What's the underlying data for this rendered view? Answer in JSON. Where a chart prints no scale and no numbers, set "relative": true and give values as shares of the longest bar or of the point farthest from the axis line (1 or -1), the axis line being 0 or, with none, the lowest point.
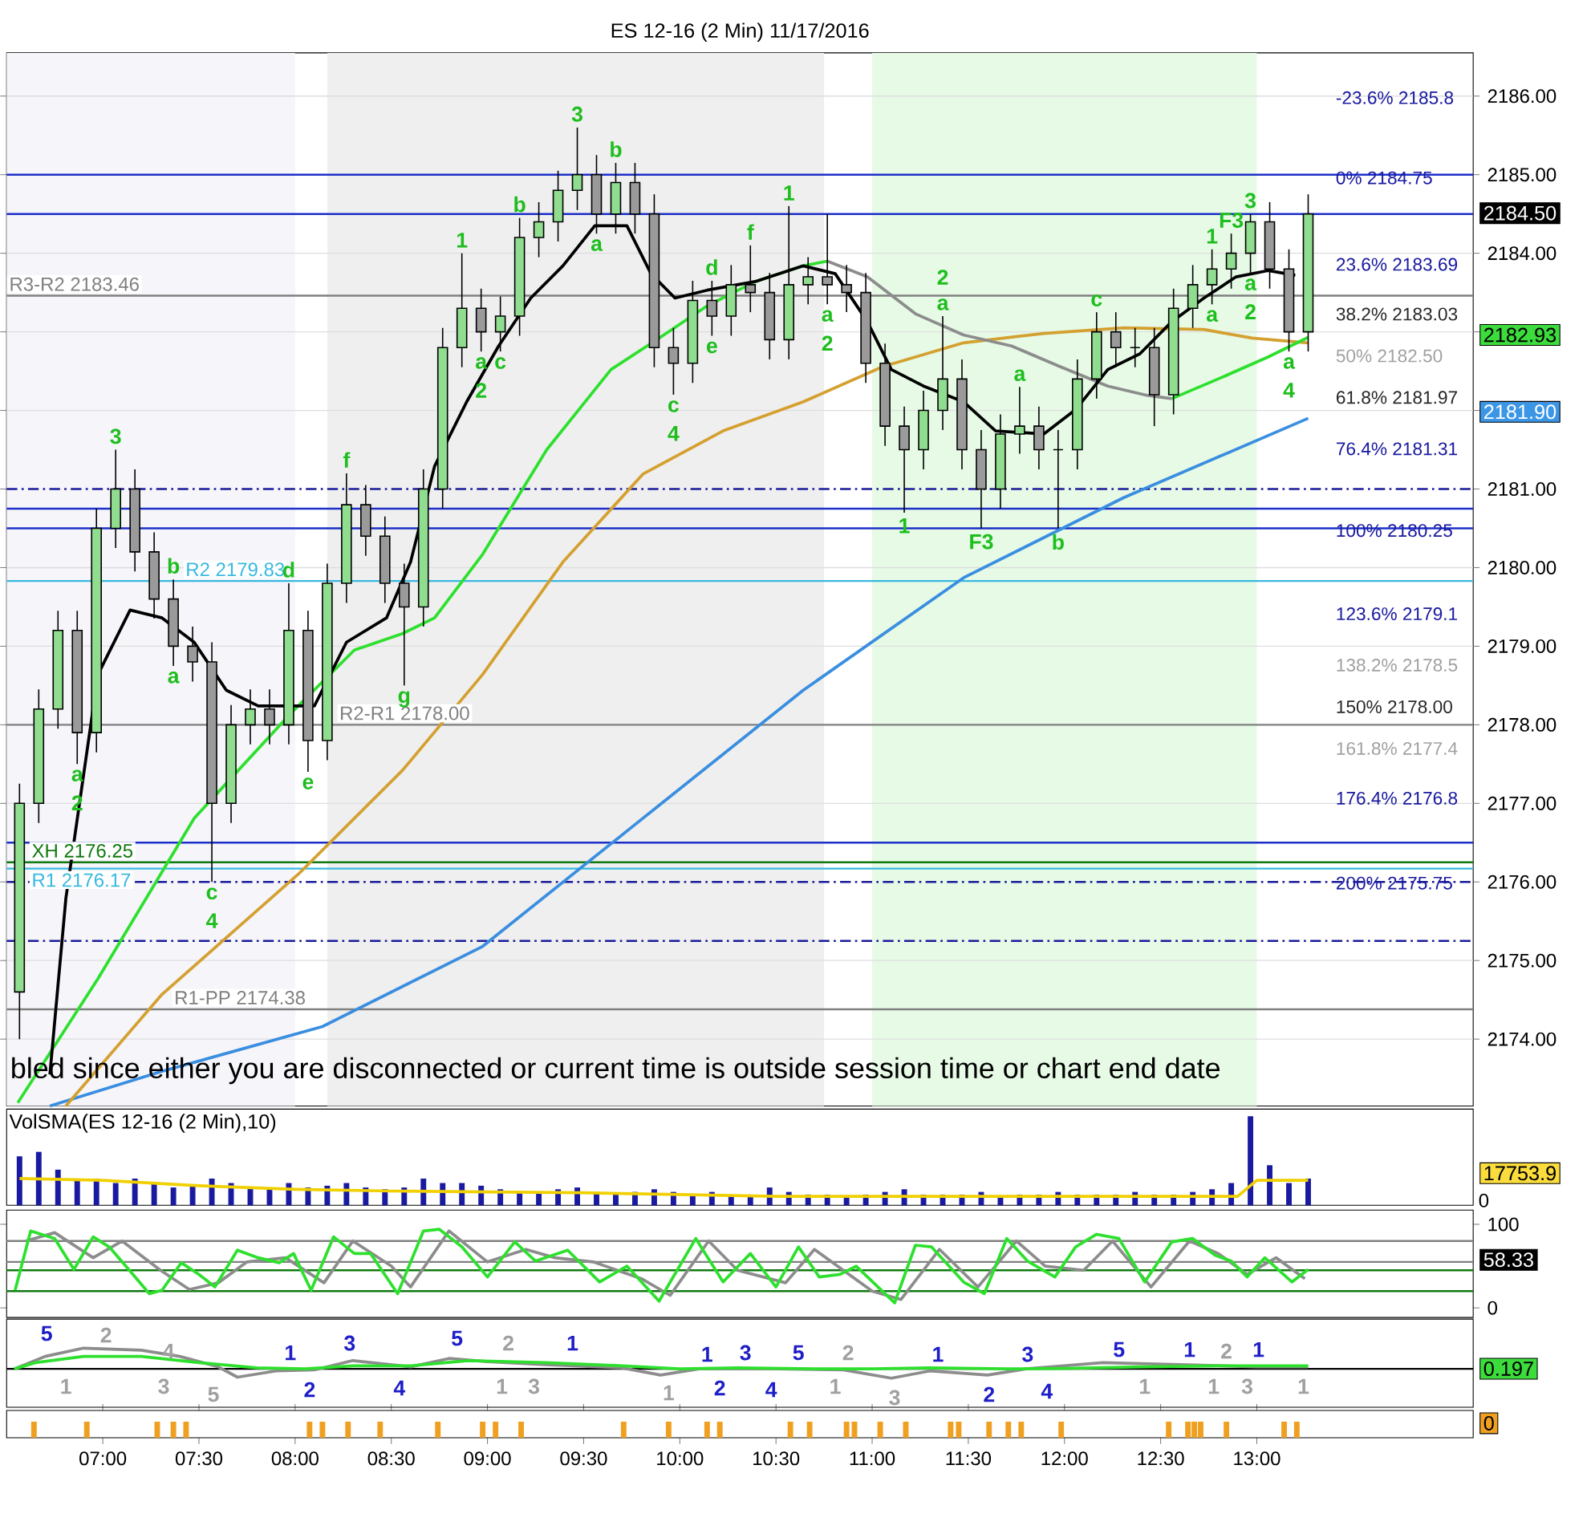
{
  "chart_data": [
    {
      "type": "candlestick",
      "title": "ES 12-16 (2 Min) 11/17/2016",
      "xlim": [
        6.5,
        14.125
      ],
      "ylim": [
        2173.15,
        2186.55
      ],
      "tick_labels": "y",
      "grid": "y",
      "yticks": [
        {
          "value": 2174,
          "label": "2174.00"
        },
        {
          "value": 2175,
          "label": "2175.00"
        },
        {
          "value": 2176,
          "label": "2176.00"
        },
        {
          "value": 2177,
          "label": "2177.00"
        },
        {
          "value": 2178,
          "label": "2178.00"
        },
        {
          "value": 2179,
          "label": "2179.00"
        },
        {
          "value": 2180,
          "label": "2180.00"
        },
        {
          "value": 2181,
          "label": "2181.00"
        },
        {
          "value": 2182,
          "label": null
        },
        {
          "value": 2183,
          "label": null
        },
        {
          "value": 2184,
          "label": "2184.00"
        },
        {
          "value": 2185,
          "label": "2185.00"
        },
        {
          "value": 2186,
          "label": "2186.00"
        }
      ],
      "bands": [
        {
          "axis": "x",
          "from": 6.5,
          "to": 8.0,
          "color": "#f5f5fa"
        },
        {
          "axis": "x",
          "from": 8.167,
          "to": 10.75,
          "color": "#efefef"
        },
        {
          "axis": "x",
          "from": 11.0,
          "to": 13.0,
          "color": "#e6fae6"
        }
      ],
      "x": [
        6.567,
        6.667,
        6.767,
        6.867,
        6.967,
        7.067,
        7.167,
        7.267,
        7.367,
        7.467,
        7.567,
        7.667,
        7.767,
        7.867,
        7.967,
        8.067,
        8.167,
        8.267,
        8.367,
        8.467,
        8.567,
        8.667,
        8.767,
        8.867,
        8.967,
        9.067,
        9.167,
        9.267,
        9.367,
        9.467,
        9.567,
        9.667,
        9.767,
        9.867,
        9.967,
        10.067,
        10.167,
        10.267,
        10.367,
        10.467,
        10.567,
        10.667,
        10.767,
        10.867,
        10.967,
        11.067,
        11.167,
        11.267,
        11.367,
        11.467,
        11.567,
        11.667,
        11.767,
        11.867,
        11.967,
        12.067,
        12.167,
        12.267,
        12.367,
        12.467,
        12.567,
        12.667,
        12.767,
        12.867,
        12.967,
        13.067,
        13.167,
        13.267
      ],
      "ohlc": [
        [
          2174.6,
          2177.25,
          2174.0,
          2177.0
        ],
        [
          2177.0,
          2178.45,
          2176.75,
          2178.2
        ],
        [
          2178.2,
          2179.45,
          2177.95,
          2179.2
        ],
        [
          2179.2,
          2179.45,
          2177.5,
          2177.9
        ],
        [
          2177.9,
          2180.75,
          2177.65,
          2180.5
        ],
        [
          2180.5,
          2181.5,
          2180.25,
          2181.0
        ],
        [
          2181.0,
          2181.25,
          2179.95,
          2180.2
        ],
        [
          2180.2,
          2180.45,
          2179.35,
          2179.6
        ],
        [
          2179.6,
          2179.85,
          2178.75,
          2179.0
        ],
        [
          2179.0,
          2179.25,
          2178.55,
          2178.8
        ],
        [
          2178.8,
          2179.05,
          2176.0,
          2177.0
        ],
        [
          2177.0,
          2178.25,
          2176.75,
          2178.0
        ],
        [
          2178.0,
          2178.45,
          2177.75,
          2178.2
        ],
        [
          2178.2,
          2178.45,
          2177.75,
          2178.0
        ],
        [
          2178.0,
          2179.8,
          2177.75,
          2179.2
        ],
        [
          2179.2,
          2179.45,
          2177.4,
          2177.8
        ],
        [
          2177.8,
          2180.05,
          2177.55,
          2179.8
        ],
        [
          2179.8,
          2181.2,
          2179.55,
          2180.8
        ],
        [
          2180.8,
          2181.05,
          2180.15,
          2180.4
        ],
        [
          2180.4,
          2180.65,
          2179.55,
          2179.8
        ],
        [
          2179.8,
          2180.05,
          2178.5,
          2179.5
        ],
        [
          2179.5,
          2181.25,
          2179.25,
          2181.0
        ],
        [
          2181.0,
          2183.05,
          2180.75,
          2182.8
        ],
        [
          2182.8,
          2184.0,
          2182.55,
          2183.3
        ],
        [
          2183.3,
          2183.55,
          2182.75,
          2183.0
        ],
        [
          2183.0,
          2183.45,
          2182.75,
          2183.2
        ],
        [
          2183.2,
          2184.45,
          2182.95,
          2184.2
        ],
        [
          2184.2,
          2184.65,
          2183.95,
          2184.4
        ],
        [
          2184.4,
          2185.05,
          2184.15,
          2184.8
        ],
        [
          2184.8,
          2185.6,
          2184.55,
          2185.0
        ],
        [
          2185.0,
          2185.25,
          2184.25,
          2184.5
        ],
        [
          2184.5,
          2185.15,
          2184.25,
          2184.9
        ],
        [
          2184.9,
          2185.15,
          2184.25,
          2184.5
        ],
        [
          2184.5,
          2184.75,
          2182.55,
          2182.8
        ],
        [
          2182.8,
          2183.05,
          2182.2,
          2182.6
        ],
        [
          2182.6,
          2183.65,
          2182.35,
          2183.4
        ],
        [
          2183.4,
          2183.65,
          2182.95,
          2183.2
        ],
        [
          2183.2,
          2183.85,
          2182.95,
          2183.6
        ],
        [
          2183.6,
          2184.1,
          2183.25,
          2183.5
        ],
        [
          2183.5,
          2183.75,
          2182.65,
          2182.9
        ],
        [
          2182.9,
          2184.6,
          2182.65,
          2183.6
        ],
        [
          2183.6,
          2183.95,
          2183.35,
          2183.7
        ],
        [
          2183.7,
          2184.5,
          2183.35,
          2183.6
        ],
        [
          2183.6,
          2183.85,
          2183.25,
          2183.5
        ],
        [
          2183.5,
          2183.75,
          2182.35,
          2182.6
        ],
        [
          2182.6,
          2182.85,
          2181.55,
          2181.8
        ],
        [
          2181.8,
          2182.05,
          2180.7,
          2181.5
        ],
        [
          2181.5,
          2182.25,
          2181.25,
          2182.0
        ],
        [
          2182.0,
          2183.2,
          2181.75,
          2182.4
        ],
        [
          2182.4,
          2182.65,
          2181.25,
          2181.5
        ],
        [
          2181.5,
          2181.75,
          2180.5,
          2181.0
        ],
        [
          2181.0,
          2181.95,
          2180.75,
          2181.7
        ],
        [
          2181.7,
          2182.3,
          2181.45,
          2181.8
        ],
        [
          2181.8,
          2182.05,
          2181.25,
          2181.5
        ],
        [
          2181.5,
          2181.75,
          2180.5,
          2181.5
        ],
        [
          2181.5,
          2182.65,
          2181.25,
          2182.4
        ],
        [
          2182.4,
          2183.25,
          2182.15,
          2183.0
        ],
        [
          2183.0,
          2183.25,
          2182.55,
          2182.8
        ],
        [
          2182.8,
          2183.05,
          2182.55,
          2182.8
        ],
        [
          2182.8,
          2183.05,
          2181.8,
          2182.2
        ],
        [
          2182.2,
          2183.55,
          2181.95,
          2183.3
        ],
        [
          2183.3,
          2183.85,
          2183.05,
          2183.6
        ],
        [
          2183.6,
          2184.05,
          2183.35,
          2183.8
        ],
        [
          2183.8,
          2184.25,
          2183.55,
          2184.0
        ],
        [
          2184.0,
          2184.5,
          2183.75,
          2184.4
        ],
        [
          2184.4,
          2184.65,
          2183.55,
          2183.8
        ],
        [
          2183.8,
          2184.05,
          2182.75,
          2183.0
        ],
        [
          2183.0,
          2184.75,
          2182.75,
          2184.5
        ]
      ],
      "colors": [
        "#90dd90",
        "#90dd90",
        "#90dd90",
        "#9a9a9a",
        "#90dd90",
        "#90dd90",
        "#9a9a9a",
        "#9a9a9a",
        "#9a9a9a",
        "#9a9a9a",
        "#9a9a9a",
        "#90dd90",
        "#90dd90",
        "#9a9a9a",
        "#90dd90",
        "#9a9a9a",
        "#90dd90",
        "#90dd90",
        "#9a9a9a",
        "#9a9a9a",
        "#9a9a9a",
        "#90dd90",
        "#90dd90",
        "#90dd90",
        "#9a9a9a",
        "#90dd90",
        "#90dd90",
        "#90dd90",
        "#90dd90",
        "#90dd90",
        "#9a9a9a",
        "#90dd90",
        "#9a9a9a",
        "#9a9a9a",
        "#9a9a9a",
        "#90dd90",
        "#9a9a9a",
        "#90dd90",
        "#9a9a9a",
        "#9a9a9a",
        "#90dd90",
        "#90dd90",
        "#9a9a9a",
        "#9a9a9a",
        "#9a9a9a",
        "#9a9a9a",
        "#9a9a9a",
        "#90dd90",
        "#90dd90",
        "#9a9a9a",
        "#9a9a9a",
        "#90dd90",
        "#90dd90",
        "#9a9a9a",
        "#000000",
        "#90dd90",
        "#90dd90",
        "#9a9a9a",
        "#000000",
        "#9a9a9a",
        "#90dd90",
        "#90dd90",
        "#90dd90",
        "#90dd90",
        "#90dd90",
        "#9a9a9a",
        "#9a9a9a",
        "#90dd90"
      ],
      "series": [
        {
          "type": "line",
          "color": "#3a8ee0",
          "x": [
            6.725,
            7.308,
            8.142,
            8.975,
            9.808,
            10.642,
            11.475,
            12.308,
            13.267
          ],
          "values": [
            2173.15,
            2173.59,
            2174.16,
            2175.18,
            2176.81,
            2178.44,
            2179.87,
            2180.89,
            2181.9
          ]
        },
        {
          "type": "line",
          "color": "#d4a030",
          "x": [
            6.808,
            7.308,
            8.017,
            8.558,
            8.975,
            9.392,
            9.808,
            10.225,
            10.642,
            11.058,
            11.475,
            11.892,
            12.308,
            12.725,
            12.975,
            13.267
          ],
          "values": [
            2173.15,
            2174.57,
            2176.1,
            2177.42,
            2178.64,
            2180.07,
            2181.19,
            2181.74,
            2182.11,
            2182.56,
            2182.86,
            2182.98,
            2183.05,
            2183.03,
            2182.92,
            2182.86
          ]
        },
        {
          "type": "line",
          "color": "#2ee02e",
          "x": [
            6.558,
            6.975,
            7.475,
            7.975,
            8.308,
            8.558,
            8.725,
            8.975,
            9.308,
            9.642,
            9.892,
            10.142,
            10.392,
            10.642,
            10.767
          ],
          "values": [
            2173.19,
            2174.77,
            2176.81,
            2178.14,
            2178.95,
            2179.16,
            2179.36,
            2180.17,
            2181.5,
            2182.52,
            2182.92,
            2183.33,
            2183.64,
            2183.84,
            2183.9
          ]
        },
        {
          "type": "line",
          "color": "#8c8c8c",
          "x": [
            10.767,
            10.975,
            11.225,
            11.475,
            11.725,
            11.975,
            12.225,
            12.433,
            12.558
          ],
          "values": [
            2183.9,
            2183.7,
            2183.23,
            2182.96,
            2182.82,
            2182.56,
            2182.31,
            2182.19,
            2182.15
          ]
        },
        {
          "type": "line",
          "color": "#2ee02e",
          "x": [
            12.558,
            12.808,
            13.058,
            13.267
          ],
          "values": [
            2182.15,
            2182.41,
            2182.68,
            2182.93
          ]
        },
        {
          "type": "line",
          "color": "#000000",
          "x": [
            6.725,
            6.808,
            6.975,
            7.142,
            7.308,
            7.475,
            7.642,
            7.808,
            8.1,
            8.267,
            8.475,
            8.6,
            8.725,
            8.892,
            9.058,
            9.225,
            9.392,
            9.558,
            9.725,
            9.85,
            9.975,
            10.142,
            10.392,
            10.642,
            10.808,
            10.975,
            11.1,
            11.267,
            11.475,
            11.642,
            11.892,
            12.058,
            12.225,
            12.392,
            12.558,
            12.725,
            12.892,
            13.058,
            13.2
          ],
          "values": [
            2173.55,
            2175.79,
            2178.64,
            2179.46,
            2179.36,
            2179.05,
            2178.44,
            2178.24,
            2178.24,
            2179.05,
            2179.36,
            2180.07,
            2181.29,
            2182.11,
            2182.82,
            2183.43,
            2183.84,
            2184.35,
            2184.35,
            2183.74,
            2183.43,
            2183.53,
            2183.64,
            2183.84,
            2183.74,
            2183.13,
            2182.52,
            2182.31,
            2182.11,
            2181.74,
            2181.7,
            2182.01,
            2182.52,
            2182.72,
            2183.13,
            2183.43,
            2183.7,
            2183.78,
            2183.72
          ]
        }
      ],
      "ref_lines": [
        {
          "axis": "y",
          "value": 2185.0,
          "color": "#1c2fc8"
        },
        {
          "axis": "y",
          "value": 2184.5,
          "color": "#1c2fc8"
        },
        {
          "axis": "y",
          "value": 2183.46,
          "label": "R3-R2 2183.46",
          "color": "#808080"
        },
        {
          "axis": "y",
          "value": 2181.0,
          "color": "#1a1a9a",
          "line_style": "dashed"
        },
        {
          "axis": "y",
          "value": 2180.75,
          "color": "#1c2fc8"
        },
        {
          "axis": "y",
          "value": 2180.5,
          "color": "#1c2fc8"
        },
        {
          "axis": "y",
          "value": 2179.83,
          "label": "R2 2179.83",
          "color": "#38b8e0"
        },
        {
          "axis": "y",
          "value": 2178.0,
          "label": "R2-R1 2178.00",
          "color": "#808080"
        },
        {
          "axis": "y",
          "value": 2176.5,
          "color": "#1c2fc8"
        },
        {
          "axis": "y",
          "value": 2176.25,
          "label": "XH 2176.25",
          "color": "#107a10"
        },
        {
          "axis": "y",
          "value": 2176.17,
          "label": "R1 2176.17",
          "color": "#38b8e0"
        },
        {
          "axis": "y",
          "value": 2176.0,
          "color": "#1a1a9a",
          "line_style": "dashed"
        },
        {
          "axis": "y",
          "value": 2175.25,
          "color": "#1a1a9a",
          "line_style": "dashed"
        },
        {
          "axis": "y",
          "value": 2174.38,
          "label": "R1-PP 2174.38",
          "color": "#808080"
        }
      ],
      "annotations": [
        {
          "text": "3",
          "x": 7.067,
          "y": 2181.5
        },
        {
          "text": "a",
          "x": 6.867,
          "y": 2177.5
        },
        {
          "text": "2",
          "x": 6.867,
          "y": 2177.5
        },
        {
          "text": "b",
          "x": 7.367,
          "y": 2179.85
        },
        {
          "text": "a",
          "x": 7.367,
          "y": 2178.75
        },
        {
          "text": "d",
          "x": 7.967,
          "y": 2179.8
        },
        {
          "text": "c",
          "x": 7.567,
          "y": 2176.0
        },
        {
          "text": "4",
          "x": 7.567,
          "y": 2176.0
        },
        {
          "text": "e",
          "x": 8.067,
          "y": 2177.4
        },
        {
          "text": "f",
          "x": 8.267,
          "y": 2181.2
        },
        {
          "text": "g",
          "x": 8.567,
          "y": 2178.5
        },
        {
          "text": "1",
          "x": 8.867,
          "y": 2184.0
        },
        {
          "text": "a",
          "x": 8.967,
          "y": 2182.75
        },
        {
          "text": "2",
          "x": 8.967,
          "y": 2182.75
        },
        {
          "text": "b",
          "x": 9.167,
          "y": 2184.45
        },
        {
          "text": "c",
          "x": 9.067,
          "y": 2182.75
        },
        {
          "text": "3",
          "x": 9.467,
          "y": 2185.6
        },
        {
          "text": "b",
          "x": 9.667,
          "y": 2185.15
        },
        {
          "text": "a",
          "x": 9.567,
          "y": 2184.25
        },
        {
          "text": "d",
          "x": 10.167,
          "y": 2183.65
        },
        {
          "text": "f",
          "x": 10.367,
          "y": 2184.1
        },
        {
          "text": "1",
          "x": 10.567,
          "y": 2184.6
        },
        {
          "text": "e",
          "x": 10.167,
          "y": 2182.95
        },
        {
          "text": "c",
          "x": 9.967,
          "y": 2182.2
        },
        {
          "text": "4",
          "x": 9.967,
          "y": 2182.2
        },
        {
          "text": "a",
          "x": 10.767,
          "y": 2183.35
        },
        {
          "text": "2",
          "x": 10.767,
          "y": 2183.35
        },
        {
          "text": "F3",
          "x": 12.867,
          "y": 2184.25
        },
        {
          "text": "3",
          "x": 12.967,
          "y": 2184.5
        },
        {
          "text": "1",
          "x": 12.767,
          "y": 2184.05
        },
        {
          "text": "a",
          "x": 12.767,
          "y": 2183.35
        },
        {
          "text": "a",
          "x": 12.967,
          "y": 2183.75
        },
        {
          "text": "2",
          "x": 12.967,
          "y": 2183.75
        },
        {
          "text": "a",
          "x": 13.167,
          "y": 2182.75
        },
        {
          "text": "4",
          "x": 13.167,
          "y": 2182.75
        },
        {
          "text": "a",
          "x": 11.367,
          "y": 2183.2
        },
        {
          "text": "2",
          "x": 11.367,
          "y": 2183.2
        },
        {
          "text": "a",
          "x": 11.767,
          "y": 2182.3
        },
        {
          "text": "c",
          "x": 12.167,
          "y": 2183.25
        },
        {
          "text": "1",
          "x": 11.167,
          "y": 2180.7
        },
        {
          "text": "F3",
          "x": 11.567,
          "y": 2180.5
        },
        {
          "text": "b",
          "x": 11.967,
          "y": 2180.5
        },
        "-23.6% 2185.8",
        "0% 2184.75",
        "23.6% 2183.69",
        "38.2% 2183.03",
        "50% 2182.50",
        "61.8% 2181.97",
        "76.4% 2181.31",
        "100% 2180.25",
        "123.6% 2179.1",
        "138.2% 2178.5",
        "150% 2178.00",
        "161.8% 2177.4",
        "176.4% 2176.8",
        "200% 2175.75",
        "2184.50",
        "2182.93",
        "2181.90",
        "bled since either you are disconnected or current time is outside session time or chart end date"
      ]
    },
    {
      "type": "bar",
      "title": "VolSMA(ES 12-16 (2 Min),10)",
      "relative": true,
      "xlim": [
        6.5,
        14.125
      ],
      "series": [
        {
          "color": "#1a1aa0",
          "x": [
            6.567,
            6.667,
            6.767,
            6.867,
            6.967,
            7.067,
            7.167,
            7.267,
            7.367,
            7.467,
            7.567,
            7.667,
            7.767,
            7.867,
            7.967,
            8.067,
            8.167,
            8.267,
            8.367,
            8.467,
            8.567,
            8.667,
            8.767,
            8.867,
            8.967,
            9.067,
            9.167,
            9.267,
            9.367,
            9.467,
            9.567,
            9.667,
            9.767,
            9.867,
            9.967,
            10.067,
            10.167,
            10.267,
            10.367,
            10.467,
            10.567,
            10.667,
            10.767,
            10.867,
            10.967,
            11.067,
            11.167,
            11.267,
            11.367,
            11.467,
            11.567,
            11.667,
            11.767,
            11.867,
            11.967,
            12.067,
            12.167,
            12.267,
            12.367,
            12.467,
            12.567,
            12.667,
            12.767,
            12.867,
            12.967,
            13.067,
            13.167,
            13.267
          ],
          "values": [
            0.55,
            0.6,
            0.4,
            0.3,
            0.3,
            0.25,
            0.3,
            0.25,
            0.2,
            0.22,
            0.3,
            0.25,
            0.2,
            0.2,
            0.25,
            0.2,
            0.22,
            0.25,
            0.2,
            0.18,
            0.2,
            0.3,
            0.25,
            0.25,
            0.22,
            0.18,
            0.15,
            0.15,
            0.18,
            0.2,
            0.15,
            0.12,
            0.15,
            0.18,
            0.15,
            0.12,
            0.15,
            0.12,
            0.12,
            0.2,
            0.15,
            0.12,
            0.12,
            0.1,
            0.12,
            0.15,
            0.18,
            0.12,
            0.12,
            0.12,
            0.15,
            0.1,
            0.12,
            0.12,
            0.15,
            0.12,
            0.12,
            0.12,
            0.15,
            0.12,
            0.12,
            0.15,
            0.18,
            0.25,
            1.0,
            0.45,
            0.25,
            0.3
          ]
        },
        {
          "type": "line",
          "color": "#f0d000",
          "x": [
            6.567,
            7.0,
            7.5,
            8.0,
            8.5,
            9.0,
            9.5,
            10.0,
            10.5,
            11.0,
            11.5,
            12.0,
            12.5,
            12.9,
            13.0,
            13.267
          ],
          "values": [
            0.3,
            0.28,
            0.22,
            0.18,
            0.16,
            0.15,
            0.14,
            0.12,
            0.1,
            0.1,
            0.1,
            0.1,
            0.1,
            0.1,
            0.28,
            0.28
          ]
        }
      ],
      "annotations": [
        "17753.9",
        "0"
      ]
    },
    {
      "type": "line",
      "xlim": [
        6.5,
        14.125
      ],
      "ylim": [
        -11.5,
        117
      ],
      "yticks": [
        0,
        100
      ],
      "tick_labels": "y",
      "series": [
        {
          "color": "#8c8c8c",
          "x": [
            6.6,
            6.75,
            6.95,
            7.1,
            7.3,
            7.45,
            7.6,
            7.75,
            7.95,
            8.15,
            8.3,
            8.5,
            8.6,
            8.8,
            9.0,
            9.2,
            9.35,
            9.55,
            9.8,
            9.95,
            10.15,
            10.3,
            10.55,
            10.7,
            10.85,
            11.0,
            11.15,
            11.35,
            11.55,
            11.75,
            11.9,
            12.1,
            12.25,
            12.45,
            12.65,
            12.8,
            12.95,
            13.1,
            13.25
          ],
          "values": [
            80,
            90,
            60,
            80,
            45,
            22,
            30,
            55,
            60,
            30,
            80,
            50,
            25,
            92,
            55,
            70,
            60,
            55,
            35,
            15,
            80,
            45,
            30,
            70,
            45,
            20,
            10,
            70,
            25,
            80,
            50,
            45,
            80,
            25,
            80,
            65,
            40,
            60,
            35
          ]
        },
        {
          "color": "#2ee02e",
          "x": [
            6.544,
            6.625,
            6.75,
            6.85,
            6.95,
            7.033,
            7.142,
            7.242,
            7.308,
            7.408,
            7.5,
            7.583,
            7.7,
            7.808,
            7.917,
            7.992,
            8.083,
            8.2,
            8.308,
            8.392,
            8.533,
            8.667,
            8.75,
            8.867,
            9.0,
            9.142,
            9.25,
            9.417,
            9.583,
            9.725,
            9.892,
            10.083,
            10.225,
            10.367,
            10.5,
            10.617,
            10.725,
            10.833,
            10.917,
            11.117,
            11.225,
            11.308,
            11.475,
            11.583,
            11.7,
            11.808,
            11.95,
            12.058,
            12.167,
            12.283,
            12.417,
            12.558,
            12.667,
            12.783,
            12.867,
            12.95,
            13.042,
            13.183,
            13.267
          ],
          "values": [
            21,
            92,
            83,
            46,
            85,
            73,
            44,
            17,
            21,
            54,
            40,
            25,
            69,
            60,
            54,
            65,
            21,
            85,
            65,
            65,
            17,
            92,
            94,
            73,
            37,
            79,
            56,
            69,
            31,
            50,
            8,
            83,
            31,
            65,
            25,
            73,
            37,
            40,
            50,
            6,
            75,
            73,
            31,
            17,
            83,
            56,
            37,
            73,
            88,
            83,
            31,
            79,
            83,
            63,
            56,
            37,
            60,
            31,
            46
          ]
        }
      ],
      "ref_lines": [
        {
          "axis": "y",
          "value": 80,
          "color": "#808080"
        },
        {
          "axis": "y",
          "value": 55,
          "color": "#808080"
        },
        {
          "axis": "y",
          "value": 45,
          "color": "#107a10"
        },
        {
          "axis": "y",
          "value": 20,
          "color": "#107a10"
        }
      ],
      "annotations": [
        "58.33"
      ]
    },
    {
      "type": "line",
      "relative": true,
      "xlim": [
        6.5,
        14.125
      ],
      "series": [
        {
          "color": "#8c8c8c",
          "x": [
            6.54,
            6.7,
            6.9,
            7.2,
            7.4,
            7.6,
            7.7,
            7.9,
            8.1,
            8.3,
            8.6,
            8.8,
            9.0,
            9.3,
            9.7,
            9.9,
            10.1,
            10.5,
            10.85,
            11.1,
            11.3,
            11.6,
            11.8,
            12.2,
            12.6,
            13.0,
            13.267
          ],
          "values": [
            0,
            0.6,
            1.0,
            0.9,
            0.6,
            0.1,
            -0.4,
            -0.1,
            -0.05,
            0.4,
            0.1,
            0.5,
            0.35,
            0.2,
            0.05,
            -0.3,
            0,
            0,
            -0.05,
            -0.45,
            -0.1,
            -0.3,
            0,
            0.3,
            0.2,
            0.1,
            0.1
          ]
        },
        {
          "color": "#2ee02e",
          "x": [
            6.54,
            6.65,
            6.9,
            7.2,
            7.5,
            7.8,
            8.05,
            8.3,
            8.6,
            8.9,
            9.3,
            9.7,
            10.0,
            10.3,
            10.7,
            11.0,
            11.3,
            11.7,
            12.0,
            12.4,
            12.8,
            13.267
          ],
          "values": [
            0,
            0.3,
            0.6,
            0.6,
            0.3,
            0.05,
            0,
            0.15,
            0.15,
            0.4,
            0.3,
            0.15,
            0,
            0.05,
            0,
            0,
            0.05,
            0,
            0.02,
            0.1,
            0.15,
            0.15
          ]
        }
      ],
      "ref_lines": [
        {
          "axis": "y",
          "value": 0,
          "color": "#000000"
        }
      ],
      "annotations": [
        "5",
        "1",
        "2",
        "3",
        "4",
        "5",
        "1",
        "1",
        "2",
        "3",
        "4",
        "5",
        "1",
        "2",
        "3",
        "4",
        "5",
        "1",
        "1",
        "2",
        "1",
        "4",
        "3",
        "5",
        "2",
        "1",
        "3",
        "1",
        "2",
        "1",
        "3",
        "1",
        "2",
        "1",
        "3",
        "1",
        "0.197"
      ]
    },
    {
      "type": "bar",
      "relative": true,
      "xlim": [
        6.5,
        14.125
      ],
      "tick_labels": "x",
      "color": "#f0a020",
      "xticks": [
        {
          "value": 7,
          "label": "07:00"
        },
        {
          "value": 7.5,
          "label": "07:30"
        },
        {
          "value": 8,
          "label": "08:00"
        },
        {
          "value": 8.5,
          "label": "08:30"
        },
        {
          "value": 9,
          "label": "09:00"
        },
        {
          "value": 9.5,
          "label": "09:30"
        },
        {
          "value": 10,
          "label": "10:00"
        },
        {
          "value": 10.5,
          "label": "10:30"
        },
        {
          "value": 11,
          "label": "11:00"
        },
        {
          "value": 11.5,
          "label": "11:30"
        },
        {
          "value": 12,
          "label": "12:00"
        },
        {
          "value": 12.5,
          "label": "12:30"
        },
        {
          "value": 13,
          "label": "13:00"
        }
      ],
      "x": [
        6.642,
        6.917,
        7.283,
        7.367,
        7.433,
        8.075,
        8.142,
        8.275,
        8.442,
        8.742,
        8.975,
        9.042,
        9.175,
        9.708,
        9.942,
        10.142,
        10.208,
        10.575,
        10.675,
        10.867,
        10.908,
        11.042,
        11.175,
        11.408,
        11.45,
        11.608,
        11.708,
        11.775,
        11.983,
        12.542,
        12.642,
        12.675,
        12.708,
        12.842,
        13.142,
        13.208
      ],
      "values": [
        1,
        1,
        1,
        1,
        1,
        1,
        1,
        1,
        1,
        1,
        1,
        1,
        1,
        1,
        1,
        1,
        1,
        1,
        1,
        1,
        1,
        1,
        1,
        1,
        1,
        1,
        1,
        1,
        1,
        1,
        1,
        1,
        1,
        1,
        1,
        1
      ],
      "annotations": [
        "0"
      ]
    }
  ]
}
